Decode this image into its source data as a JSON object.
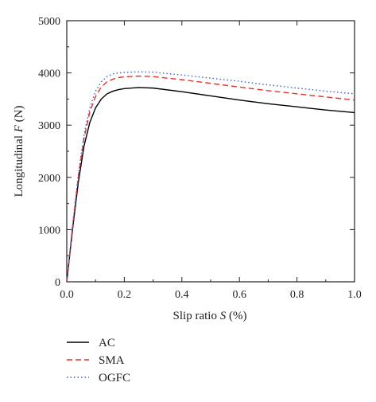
{
  "chart_data": {
    "type": "line",
    "xlabel_prefix": "Slip ratio ",
    "xlabel_var": "S",
    "xlabel_suffix": " (%)",
    "ylabel_prefix": "Longitudinal ",
    "ylabel_var": "F",
    "ylabel_suffix": " (N)",
    "xlim": [
      0,
      1.0
    ],
    "ylim": [
      0,
      5000
    ],
    "xticks": [
      "0.0",
      "0.2",
      "0.4",
      "0.6",
      "0.8",
      "1.0"
    ],
    "yticks": [
      "0",
      "1000",
      "2000",
      "3000",
      "4000",
      "5000"
    ],
    "grid": false,
    "legend_position": "below-left",
    "series": [
      {
        "name": "AC",
        "color": "#000000",
        "dash": "solid",
        "x": [
          0,
          0.02,
          0.04,
          0.06,
          0.08,
          0.1,
          0.12,
          0.14,
          0.16,
          0.18,
          0.2,
          0.25,
          0.3,
          0.4,
          0.5,
          0.6,
          0.7,
          0.8,
          0.9,
          1.0
        ],
        "y": [
          0,
          1000,
          1900,
          2600,
          3050,
          3330,
          3500,
          3600,
          3650,
          3680,
          3700,
          3720,
          3710,
          3640,
          3560,
          3480,
          3410,
          3350,
          3290,
          3240
        ]
      },
      {
        "name": "SMA",
        "color": "#e8312a",
        "dash": "dashed",
        "x": [
          0,
          0.02,
          0.04,
          0.06,
          0.08,
          0.1,
          0.12,
          0.14,
          0.16,
          0.18,
          0.2,
          0.25,
          0.3,
          0.4,
          0.5,
          0.6,
          0.7,
          0.8,
          0.9,
          1.0
        ],
        "y": [
          0,
          1050,
          2000,
          2750,
          3250,
          3550,
          3730,
          3830,
          3880,
          3910,
          3925,
          3940,
          3930,
          3870,
          3800,
          3730,
          3660,
          3600,
          3540,
          3480
        ]
      },
      {
        "name": "OGFC",
        "color": "#3a5fcd",
        "dash": "dotted",
        "x": [
          0,
          0.02,
          0.04,
          0.06,
          0.08,
          0.1,
          0.12,
          0.14,
          0.16,
          0.18,
          0.2,
          0.25,
          0.3,
          0.4,
          0.5,
          0.6,
          0.7,
          0.8,
          0.9,
          1.0
        ],
        "y": [
          0,
          1080,
          2050,
          2820,
          3330,
          3650,
          3830,
          3930,
          3980,
          4000,
          4010,
          4020,
          4015,
          3960,
          3900,
          3840,
          3770,
          3710,
          3650,
          3600
        ]
      }
    ]
  }
}
